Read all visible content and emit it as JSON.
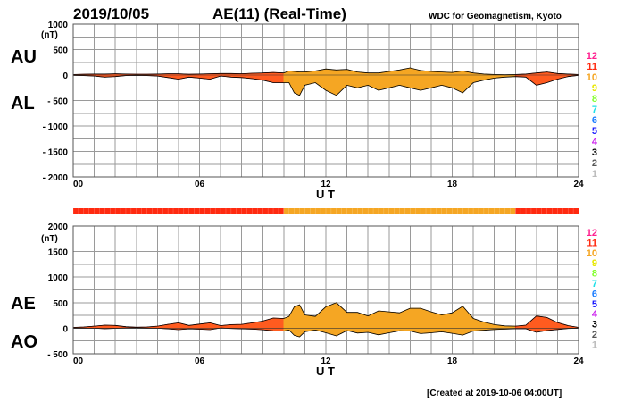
{
  "header": {
    "date": "2019/10/05",
    "title": "AE(11) (Real-Time)",
    "source": "WDC for Geomagnetism, Kyoto"
  },
  "footer": {
    "created": "[Created at 2019-10-06 04:00UT]"
  },
  "colors": {
    "active_fill": "#ff5b1f",
    "active_stroke": "#d0180b",
    "low_fill": "#f5a623",
    "outline": "#000000",
    "station_bar_red": "#ff2a10",
    "station_bar_orange": "#f5a623"
  },
  "legend": [
    {
      "label": "12",
      "color": "#ff1f8f"
    },
    {
      "label": "11",
      "color": "#ff2a10"
    },
    {
      "label": "10",
      "color": "#f5a623"
    },
    {
      "label": "9",
      "color": "#e8e800"
    },
    {
      "label": "8",
      "color": "#80ff2a"
    },
    {
      "label": "7",
      "color": "#20e0e8"
    },
    {
      "label": "6",
      "color": "#1a7cff"
    },
    {
      "label": "5",
      "color": "#1a1aff"
    },
    {
      "label": "4",
      "color": "#cc22ee"
    },
    {
      "label": "3",
      "color": "#000000"
    },
    {
      "label": "2",
      "color": "#555555"
    },
    {
      "label": "1",
      "color": "#bbbbbb"
    }
  ],
  "chart_data": [
    {
      "type": "area",
      "name": "AU/AL",
      "series_labels": [
        "AU",
        "AL"
      ],
      "ylabel": "(nT)",
      "xlabel": "U T",
      "x_ticks": [
        "00",
        "06",
        "12",
        "18",
        "24"
      ],
      "y_ticks": [
        "1000",
        "500",
        "0",
        "- 500",
        "- 1000",
        "- 1500",
        "- 2000"
      ],
      "xlim": [
        0,
        24
      ],
      "ylim": [
        -2000,
        1000
      ],
      "grid": true,
      "x": [
        0,
        0.5,
        1,
        1.5,
        2,
        2.5,
        3,
        3.5,
        4,
        4.5,
        5,
        5.5,
        6,
        6.5,
        7,
        7.5,
        8,
        8.5,
        9,
        9.5,
        10,
        10.25,
        10.5,
        10.75,
        11,
        11.5,
        12,
        12.5,
        13,
        13.5,
        14,
        14.5,
        15,
        15.5,
        16,
        16.5,
        17,
        17.5,
        18,
        18.5,
        19,
        19.5,
        20,
        20.5,
        21,
        21.5,
        22,
        22.5,
        23,
        23.5,
        24
      ],
      "series": [
        {
          "name": "AU",
          "values": [
            10,
            15,
            20,
            20,
            25,
            20,
            15,
            15,
            20,
            25,
            25,
            15,
            20,
            25,
            30,
            30,
            25,
            35,
            40,
            50,
            40,
            80,
            70,
            60,
            60,
            80,
            120,
            100,
            110,
            60,
            40,
            40,
            70,
            100,
            140,
            90,
            70,
            60,
            50,
            80,
            40,
            20,
            10,
            5,
            10,
            20,
            40,
            60,
            30,
            20,
            10
          ]
        },
        {
          "name": "AL",
          "values": [
            -5,
            -10,
            -20,
            -40,
            -30,
            -10,
            -5,
            -10,
            -20,
            -50,
            -80,
            -40,
            -60,
            -80,
            -20,
            -40,
            -50,
            -70,
            -100,
            -150,
            -150,
            -150,
            -350,
            -400,
            -200,
            -150,
            -300,
            -400,
            -200,
            -250,
            -200,
            -300,
            -250,
            -200,
            -250,
            -300,
            -250,
            -200,
            -250,
            -350,
            -150,
            -100,
            -60,
            -40,
            -30,
            -40,
            -200,
            -150,
            -80,
            -30,
            -5
          ]
        }
      ]
    },
    {
      "type": "area",
      "name": "AE/AO",
      "series_labels": [
        "AE",
        "AO"
      ],
      "ylabel": "(nT)",
      "xlabel": "U T",
      "x_ticks": [
        "00",
        "06",
        "12",
        "18",
        "24"
      ],
      "y_ticks": [
        "2000",
        "1500",
        "1000",
        "500",
        "0",
        "- 500"
      ],
      "xlim": [
        0,
        24
      ],
      "ylim": [
        -500,
        2000
      ],
      "grid": true,
      "x": [
        0,
        0.5,
        1,
        1.5,
        2,
        2.5,
        3,
        3.5,
        4,
        4.5,
        5,
        5.5,
        6,
        6.5,
        7,
        7.5,
        8,
        8.5,
        9,
        9.5,
        10,
        10.25,
        10.5,
        10.75,
        11,
        11.5,
        12,
        12.5,
        13,
        13.5,
        14,
        14.5,
        15,
        15.5,
        16,
        16.5,
        17,
        17.5,
        18,
        18.5,
        19,
        19.5,
        20,
        20.5,
        21,
        21.5,
        22,
        22.5,
        23,
        23.5,
        24
      ],
      "series": [
        {
          "name": "AE",
          "values": [
            15,
            25,
            40,
            60,
            55,
            30,
            20,
            25,
            40,
            75,
            105,
            55,
            80,
            105,
            50,
            70,
            75,
            105,
            140,
            200,
            190,
            230,
            420,
            460,
            260,
            230,
            420,
            500,
            310,
            310,
            240,
            340,
            320,
            300,
            390,
            390,
            320,
            260,
            300,
            430,
            190,
            120,
            70,
            45,
            40,
            60,
            240,
            210,
            110,
            50,
            15
          ]
        },
        {
          "name": "AO",
          "values": [
            2,
            2,
            0,
            -10,
            -2,
            5,
            5,
            2,
            0,
            -12,
            -28,
            -12,
            -20,
            -28,
            5,
            -5,
            -12,
            -17,
            -30,
            -50,
            -55,
            -35,
            -140,
            -170,
            -70,
            -35,
            -90,
            -150,
            -45,
            -95,
            -80,
            -130,
            -90,
            -50,
            -55,
            -105,
            -90,
            -70,
            -100,
            -135,
            -55,
            -40,
            -25,
            -18,
            -10,
            -10,
            -80,
            -45,
            -25,
            -5,
            2
          ]
        }
      ]
    }
  ]
}
